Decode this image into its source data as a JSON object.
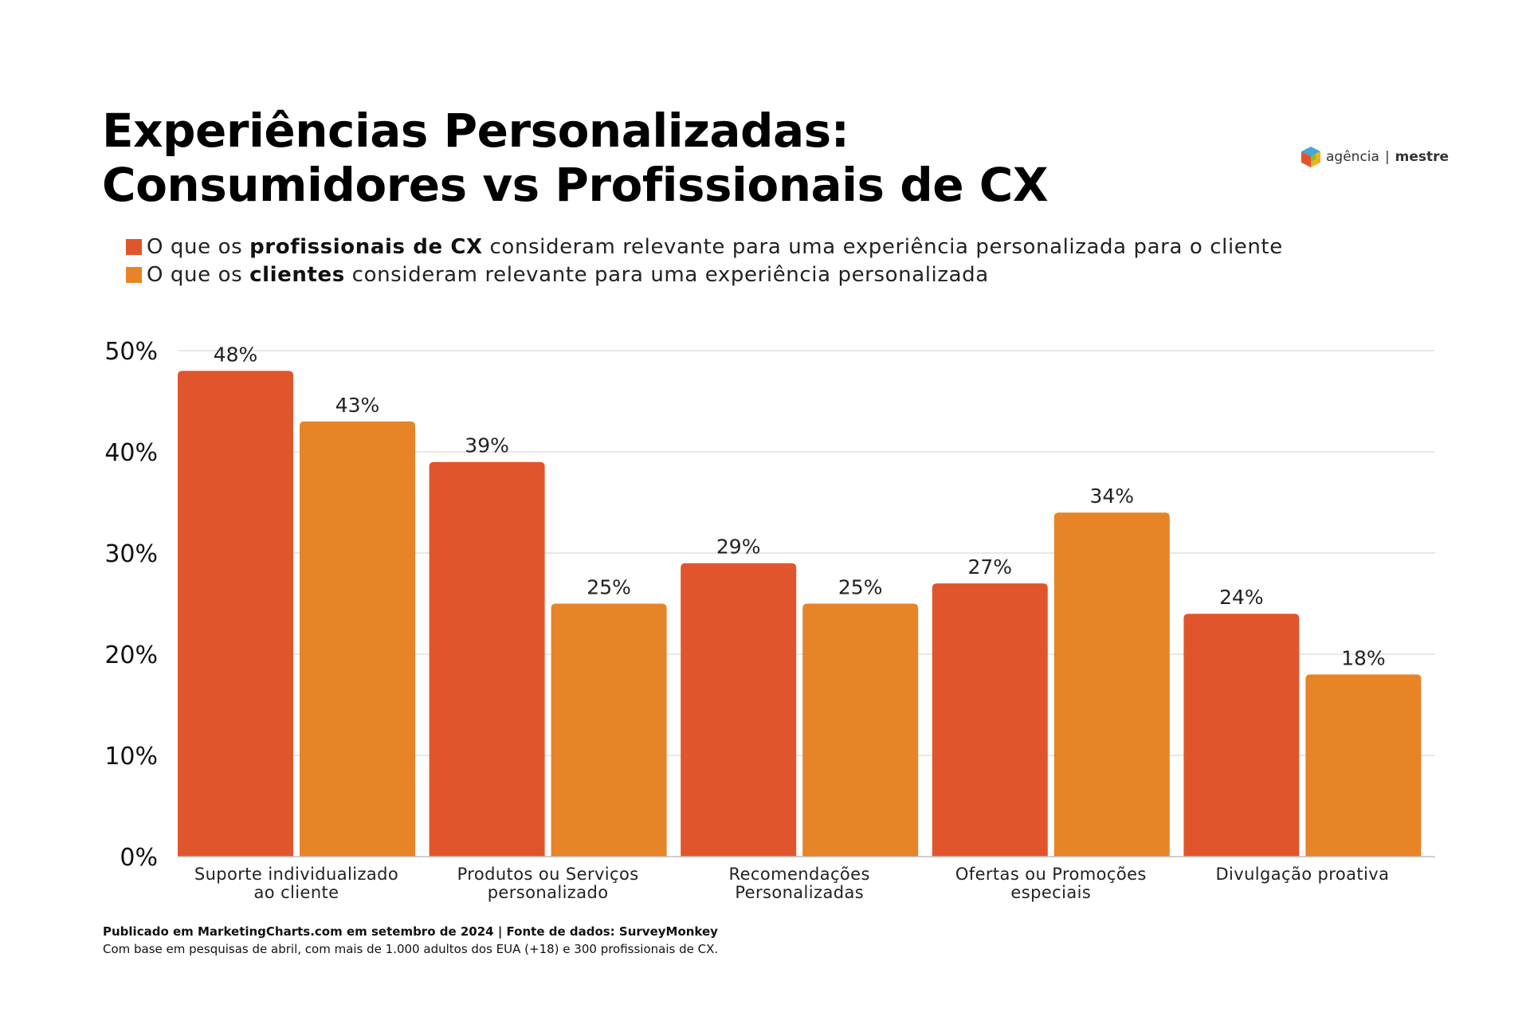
{
  "header": {
    "title_line1": "Experiências Personalizadas:",
    "title_line2": "Consumidores vs Profissionais de CX"
  },
  "logo": {
    "text_part1": "agência",
    "separator": "|",
    "text_part2": "mestre",
    "icon": "cube-logo-icon"
  },
  "legend": [
    {
      "prefix": "O que os ",
      "bold": "profissionais de CX",
      "suffix": " consideram relevante para uma experiência personalizada para o cliente",
      "color": "#E1552D"
    },
    {
      "prefix": "O que os ",
      "bold": "clientes",
      "suffix": " consideram relevante para uma experiência personalizada",
      "color": "#E68427"
    }
  ],
  "chart_data": {
    "type": "bar",
    "categories": [
      [
        "Suporte individualizado",
        "ao cliente"
      ],
      [
        "Produtos ou Serviços",
        "personalizado"
      ],
      [
        "Recomendações",
        "Personalizadas"
      ],
      [
        "Ofertas ou Promoções",
        "especiais"
      ],
      [
        "Divulgação proativa"
      ]
    ],
    "series": [
      {
        "values": [
          48,
          39,
          29,
          27,
          24
        ],
        "color": "#E1552D"
      },
      {
        "values": [
          43,
          25,
          25,
          34,
          18
        ],
        "color": "#E68427"
      }
    ],
    "data_labels": [
      [
        "48%",
        "39%",
        "29%",
        "27%",
        "24%"
      ],
      [
        "43%",
        "25%",
        "25%",
        "34%",
        "18%"
      ]
    ],
    "yticks": [
      "0%",
      "10%",
      "20%",
      "30%",
      "40%",
      "50%"
    ],
    "ylim": [
      0,
      50
    ],
    "grid": true
  },
  "footer": {
    "source": "Publicado em MarketingCharts.com em setembro de 2024 | Fonte de dados: SurveyMonkey",
    "note": "Com base em pesquisas de abril, com mais de 1.000 adultos dos EUA (+18) e 300 profissionais de CX."
  }
}
